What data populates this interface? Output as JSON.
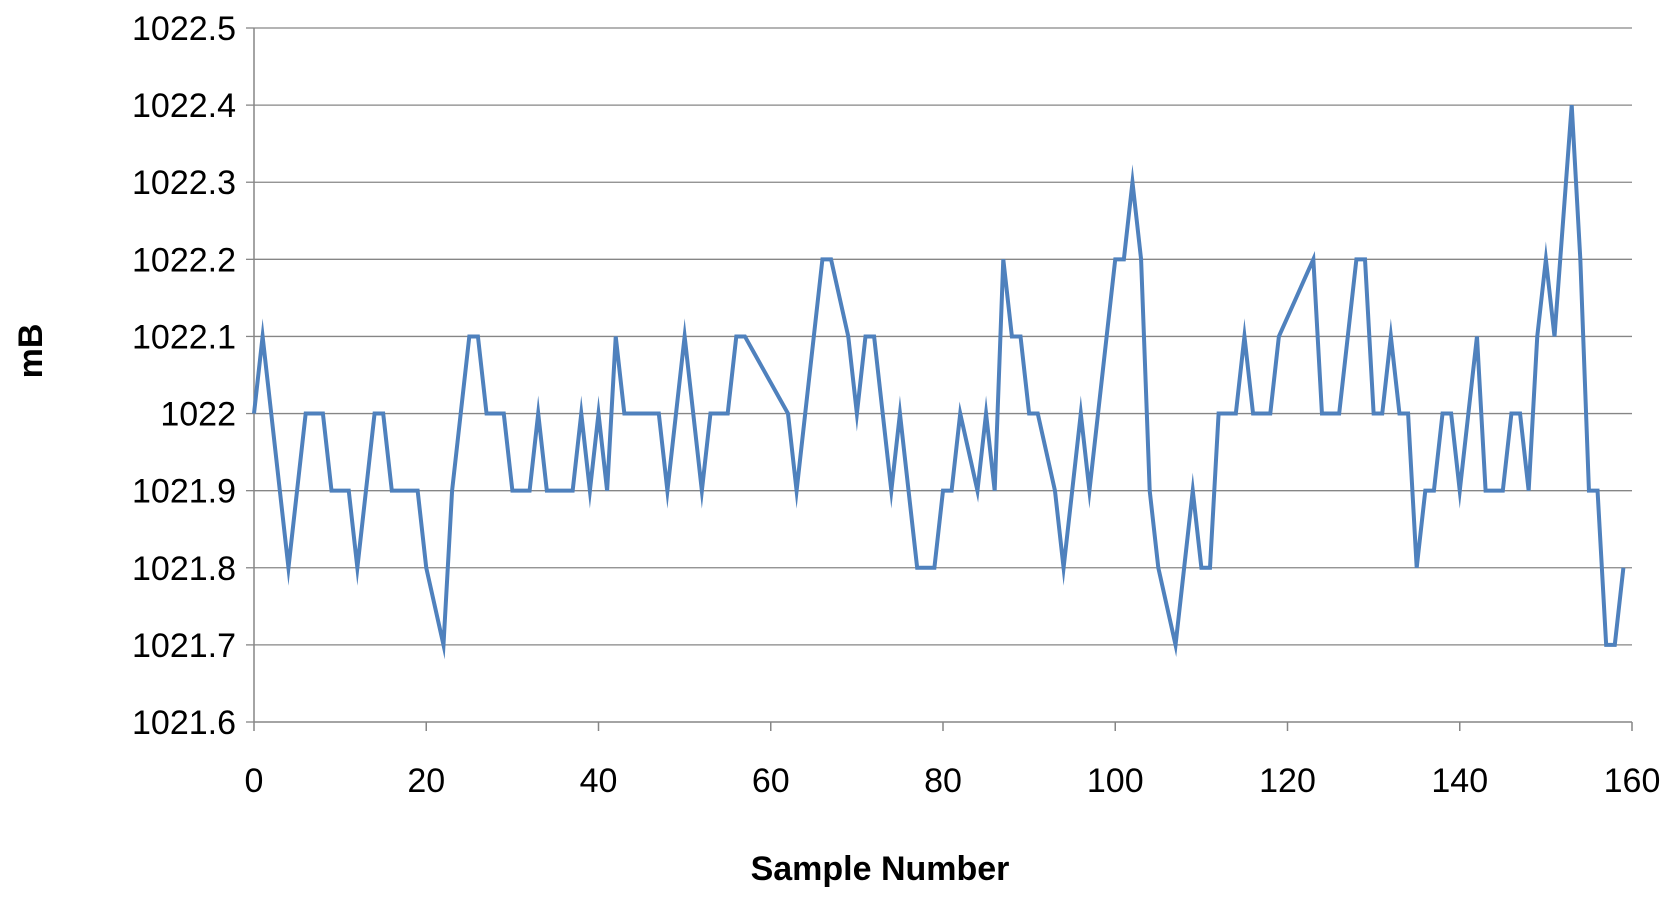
{
  "chart_data": {
    "type": "line",
    "title": "",
    "xlabel": "Sample Number",
    "ylabel": "mB",
    "xlim": [
      0,
      160
    ],
    "ylim": [
      1021.6,
      1022.5
    ],
    "xticks": [
      "0",
      "20",
      "40",
      "60",
      "80",
      "100",
      "120",
      "140",
      "160"
    ],
    "yticks": [
      "1021.6",
      "1021.7",
      "1021.8",
      "1021.9",
      "1022",
      "1022.1",
      "1022.2",
      "1022.3",
      "1022.4",
      "1022.5"
    ],
    "grid": true,
    "legend": "none",
    "line_color": "#4f81bd",
    "series": [
      {
        "x": [
          0,
          1,
          2,
          3,
          4,
          5,
          6,
          7,
          8,
          9,
          10,
          11,
          12,
          13,
          14,
          15,
          16,
          17,
          18,
          19,
          20,
          21,
          22,
          23,
          24,
          25,
          26,
          27,
          28,
          29,
          30,
          31,
          32,
          33,
          34,
          35,
          36,
          37,
          38,
          39,
          40,
          41,
          42,
          43,
          44,
          45,
          46,
          47,
          48,
          49,
          50,
          51,
          52,
          53,
          54,
          55,
          56,
          57,
          58,
          59,
          60,
          61,
          62,
          63,
          64,
          65,
          66,
          67,
          68,
          69,
          70,
          71,
          72,
          73,
          74,
          75,
          76,
          77,
          78,
          79,
          80,
          81,
          82,
          83,
          84,
          85,
          86,
          87,
          88,
          89,
          90,
          91,
          92,
          93,
          94,
          95,
          96,
          97,
          98,
          99,
          100,
          101,
          102,
          103,
          104,
          105,
          106,
          107,
          108,
          109,
          110,
          111,
          112,
          113,
          114,
          115,
          116,
          117,
          118,
          119,
          120,
          121,
          122,
          123,
          124,
          125,
          126,
          127,
          128,
          129,
          130,
          131,
          132,
          133,
          134,
          135,
          136,
          137,
          138,
          139,
          140,
          141,
          142,
          143,
          144,
          145,
          146,
          147,
          148,
          149,
          150,
          151,
          152,
          153,
          154,
          155,
          156,
          157,
          158,
          159
        ],
        "y": [
          1022.0,
          1022.1,
          1022.0,
          1021.9,
          1021.8,
          1021.9,
          1022.0,
          1022.0,
          1022.0,
          1021.9,
          1021.9,
          1021.9,
          1021.8,
          1021.9,
          1022.0,
          1022.0,
          1021.9,
          1021.9,
          1021.9,
          1021.9,
          1021.8,
          1021.75,
          1021.7,
          1021.9,
          1022.0,
          1022.1,
          1022.1,
          1022.0,
          1022.0,
          1022.0,
          1021.9,
          1021.9,
          1021.9,
          1022.0,
          1021.9,
          1021.9,
          1021.9,
          1021.9,
          1022.0,
          1021.9,
          1022.0,
          1021.9,
          1022.1,
          1022.0,
          1022.0,
          1022.0,
          1022.0,
          1022.0,
          1021.9,
          1022.0,
          1022.1,
          1022.0,
          1021.9,
          1022.0,
          1022.0,
          1022.0,
          1022.1,
          1022.1,
          1022.08,
          1022.06,
          1022.04,
          1022.02,
          1022.0,
          1021.9,
          1022.0,
          1022.1,
          1022.2,
          1022.2,
          1022.15,
          1022.1,
          1022.0,
          1022.1,
          1022.1,
          1022.0,
          1021.9,
          1022.0,
          1021.9,
          1021.8,
          1021.8,
          1021.8,
          1021.9,
          1021.9,
          1022.0,
          1021.95,
          1021.9,
          1022.0,
          1021.9,
          1022.2,
          1022.1,
          1022.1,
          1022.0,
          1022.0,
          1021.95,
          1021.9,
          1021.8,
          1021.9,
          1022.0,
          1021.9,
          1022.0,
          1022.1,
          1022.2,
          1022.2,
          1022.3,
          1022.2,
          1021.9,
          1021.8,
          1021.75,
          1021.7,
          1021.8,
          1021.9,
          1021.8,
          1021.8,
          1022.0,
          1022.0,
          1022.0,
          1022.1,
          1022.0,
          1022.0,
          1022.0,
          1022.1,
          1022.125,
          1022.15,
          1022.175,
          1022.2,
          1022.0,
          1022.0,
          1022.0,
          1022.1,
          1022.2,
          1022.2,
          1022.0,
          1022.0,
          1022.1,
          1022.0,
          1022.0,
          1021.8,
          1021.9,
          1021.9,
          1022.0,
          1022.0,
          1021.9,
          1022.0,
          1022.1,
          1021.9,
          1021.9,
          1021.9,
          1022.0,
          1022.0,
          1021.9,
          1022.1,
          1022.2,
          1022.1,
          1022.25,
          1022.4,
          1022.2,
          1021.9,
          1021.9,
          1021.7,
          1021.7,
          1021.8
        ]
      }
    ]
  }
}
